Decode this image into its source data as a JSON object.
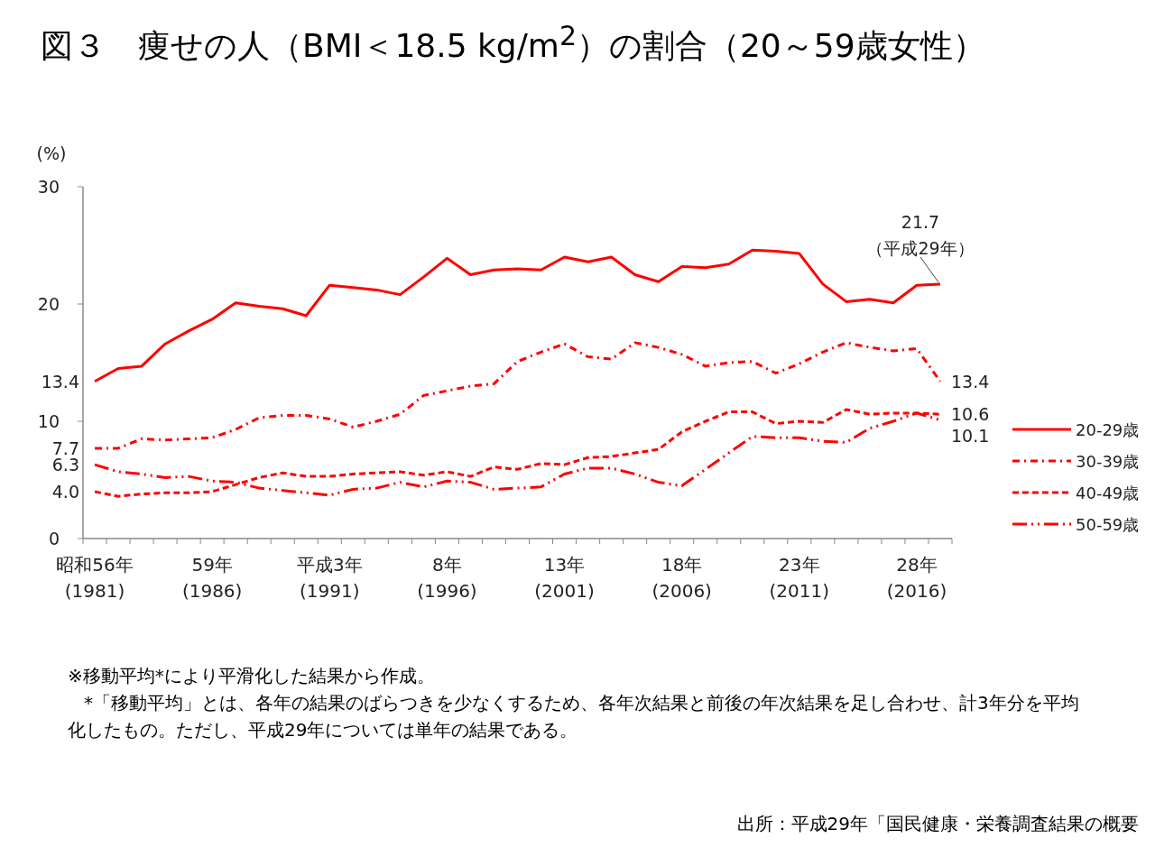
{
  "chart_data": {
    "type": "line",
    "title": "図３　痩せの人（BMI＜18.5 kg/m$^{2}$）の割合（20～59歳女性）",
    "ylabel": "(%)",
    "categories": [
      "昭和56年\n(1981)",
      null,
      null,
      null,
      null,
      "59年\n(1986)",
      null,
      null,
      null,
      null,
      "平成3年\n(1991)",
      null,
      null,
      null,
      null,
      "8年\n(1996)",
      null,
      null,
      null,
      null,
      "13年\n(2001)",
      null,
      null,
      null,
      null,
      "18年\n(2006)",
      null,
      null,
      null,
      null,
      "23年\n(2011)",
      null,
      null,
      null,
      null,
      "28年\n(2016)",
      null
    ],
    "series": [
      {
        "name": "20-29歳",
        "color": "#ff0000",
        "line_style": "solid",
        "values": [
          13.4,
          14.5,
          14.7,
          16.6,
          17.7,
          18.7,
          20.1,
          19.8,
          19.6,
          19.0,
          21.6,
          21.4,
          21.2,
          20.8,
          22.3,
          23.9,
          22.5,
          22.9,
          23.0,
          22.9,
          24.0,
          23.6,
          24.0,
          22.5,
          21.9,
          23.2,
          23.1,
          23.4,
          24.6,
          24.5,
          24.3,
          21.7,
          20.2,
          20.4,
          20.1,
          21.6,
          21.7
        ],
        "value_labels": [
          "13.4",
          null,
          null,
          null,
          null,
          null,
          null,
          null,
          null,
          null,
          null,
          null,
          null,
          null,
          null,
          null,
          null,
          null,
          null,
          null,
          null,
          null,
          null,
          null,
          null,
          null,
          null,
          null,
          null,
          null,
          null,
          null,
          null,
          null,
          null,
          null,
          "21.7\n（平成29年）"
        ]
      },
      {
        "name": "30-39歳",
        "color": "#ff0000",
        "line_style": "dashdot",
        "values": [
          7.7,
          7.7,
          8.5,
          8.4,
          8.5,
          8.6,
          9.3,
          10.3,
          10.5,
          10.5,
          10.2,
          9.5,
          10.0,
          10.6,
          12.2,
          12.6,
          13.0,
          13.2,
          15.1,
          15.9,
          16.6,
          15.5,
          15.3,
          16.7,
          16.3,
          15.7,
          14.7,
          15.0,
          15.1,
          14.1,
          14.9,
          15.9,
          16.7,
          16.3,
          16.0,
          16.2,
          13.4
        ],
        "value_labels": [
          "7.7",
          null,
          null,
          null,
          null,
          null,
          null,
          null,
          null,
          null,
          null,
          null,
          null,
          null,
          null,
          null,
          null,
          null,
          null,
          null,
          null,
          null,
          null,
          null,
          null,
          null,
          null,
          null,
          null,
          null,
          null,
          null,
          null,
          null,
          null,
          null,
          "13.4"
        ]
      },
      {
        "name": "40-49歳",
        "color": "#ff0000",
        "line_style": "dashed",
        "values": [
          4.0,
          3.6,
          3.8,
          3.9,
          3.9,
          4.0,
          4.6,
          5.2,
          5.6,
          5.3,
          5.3,
          5.5,
          5.6,
          5.7,
          5.4,
          5.7,
          5.3,
          6.1,
          5.9,
          6.4,
          6.3,
          6.9,
          7.0,
          7.3,
          7.6,
          9.1,
          10.0,
          10.8,
          10.8,
          9.8,
          10.0,
          9.9,
          11.0,
          10.6,
          10.7,
          10.7,
          10.6
        ],
        "value_labels": [
          "4.0",
          null,
          null,
          null,
          null,
          null,
          null,
          null,
          null,
          null,
          null,
          null,
          null,
          null,
          null,
          null,
          null,
          null,
          null,
          null,
          null,
          null,
          null,
          null,
          null,
          null,
          null,
          null,
          null,
          null,
          null,
          null,
          null,
          null,
          null,
          null,
          "10.6"
        ]
      },
      {
        "name": "50-59歳",
        "color": "#ff0000",
        "line_style": "dashdotdot",
        "values": [
          6.3,
          5.7,
          5.5,
          5.2,
          5.3,
          4.9,
          4.8,
          4.3,
          4.1,
          3.9,
          3.7,
          4.2,
          4.3,
          4.8,
          4.4,
          4.9,
          4.8,
          4.2,
          4.3,
          4.4,
          5.5,
          6.0,
          6.0,
          5.5,
          4.8,
          4.5,
          5.9,
          7.3,
          8.7,
          8.6,
          8.6,
          8.3,
          8.2,
          9.4,
          10.0,
          10.7,
          10.1
        ],
        "value_labels": [
          "6.3",
          null,
          null,
          null,
          null,
          null,
          null,
          null,
          null,
          null,
          null,
          null,
          null,
          null,
          null,
          null,
          null,
          null,
          null,
          null,
          null,
          null,
          null,
          null,
          null,
          null,
          null,
          null,
          null,
          null,
          null,
          null,
          null,
          null,
          null,
          null,
          "10.1"
        ]
      }
    ],
    "ylim": [
      0,
      30
    ],
    "yticks": [
      0,
      10,
      20,
      30
    ],
    "grid": false,
    "legend": "right",
    "marker": "none",
    "annotations": [
      "※移動平均*により平滑化した結果から作成。",
      "*「移動平均」とは、各年の結果のばらつきを少なくするため、各年次結果と前後の年次結果を足し合わせ、計3年分を平均化したもの。ただし、平成29年については単年の結果である。",
      "出所：平成29年「国民健康・栄養調査結果の概要"
    ]
  }
}
